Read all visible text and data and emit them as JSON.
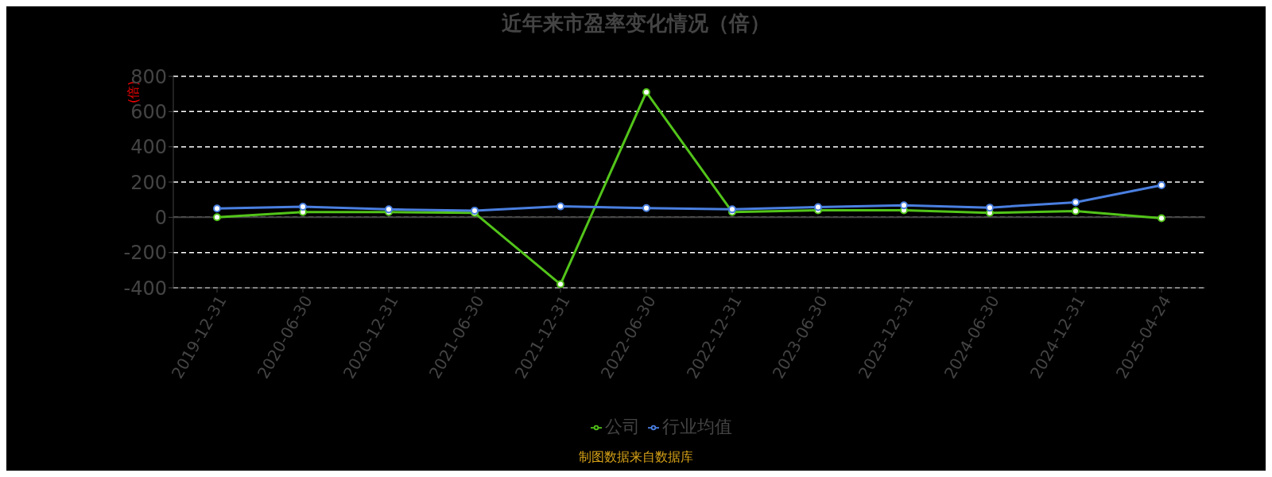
{
  "chart_data": {
    "type": "line",
    "title": "近年来市盈率变化情况（倍）",
    "ylabel": "(倍)",
    "categories": [
      "2019-12-31",
      "2020-06-30",
      "2020-12-31",
      "2021-06-30",
      "2021-12-31",
      "2022-06-30",
      "2022-12-31",
      "2023-06-30",
      "2023-12-31",
      "2024-06-30",
      "2024-12-31",
      "2025-04-24"
    ],
    "series": [
      {
        "name": "公司",
        "color": "#52c41a",
        "values": [
          0,
          30,
          30,
          25,
          -380,
          710,
          30,
          40,
          40,
          25,
          35,
          -5
        ]
      },
      {
        "name": "行业均值",
        "color": "#4a7fe0",
        "values": [
          50,
          60,
          45,
          38,
          62,
          52,
          45,
          58,
          68,
          55,
          85,
          182
        ]
      }
    ],
    "ylim": [
      -400,
      800
    ],
    "yticks": [
      -400,
      -200,
      0,
      200,
      400,
      600,
      800
    ],
    "grid": "y",
    "legend": "bottom",
    "marker": "circle",
    "annotations": [
      "制图数据来自数据库"
    ]
  }
}
